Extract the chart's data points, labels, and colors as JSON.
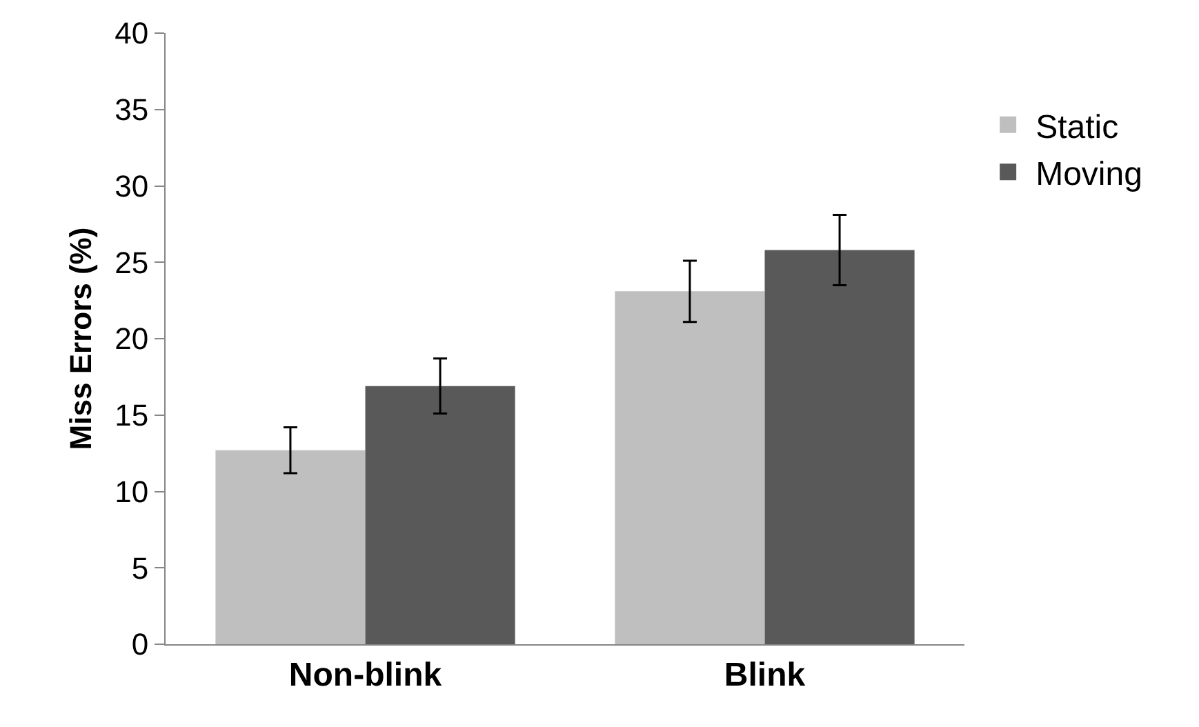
{
  "chart_data": {
    "type": "bar",
    "ylabel": "Miss Errors (%)",
    "categories": [
      "Non-blink",
      "Blink"
    ],
    "series": [
      {
        "name": "Static",
        "color": "#bfbfbf",
        "values": [
          12.7,
          23.1
        ],
        "errors": [
          1.5,
          2.0
        ]
      },
      {
        "name": "Moving",
        "color": "#595959",
        "values": [
          16.9,
          25.8
        ],
        "errors": [
          1.8,
          2.3
        ]
      }
    ],
    "ylim": [
      0,
      40
    ],
    "yticks": [
      0,
      5,
      10,
      15,
      20,
      25,
      30,
      35,
      40
    ],
    "grid": false,
    "legend": "right"
  }
}
